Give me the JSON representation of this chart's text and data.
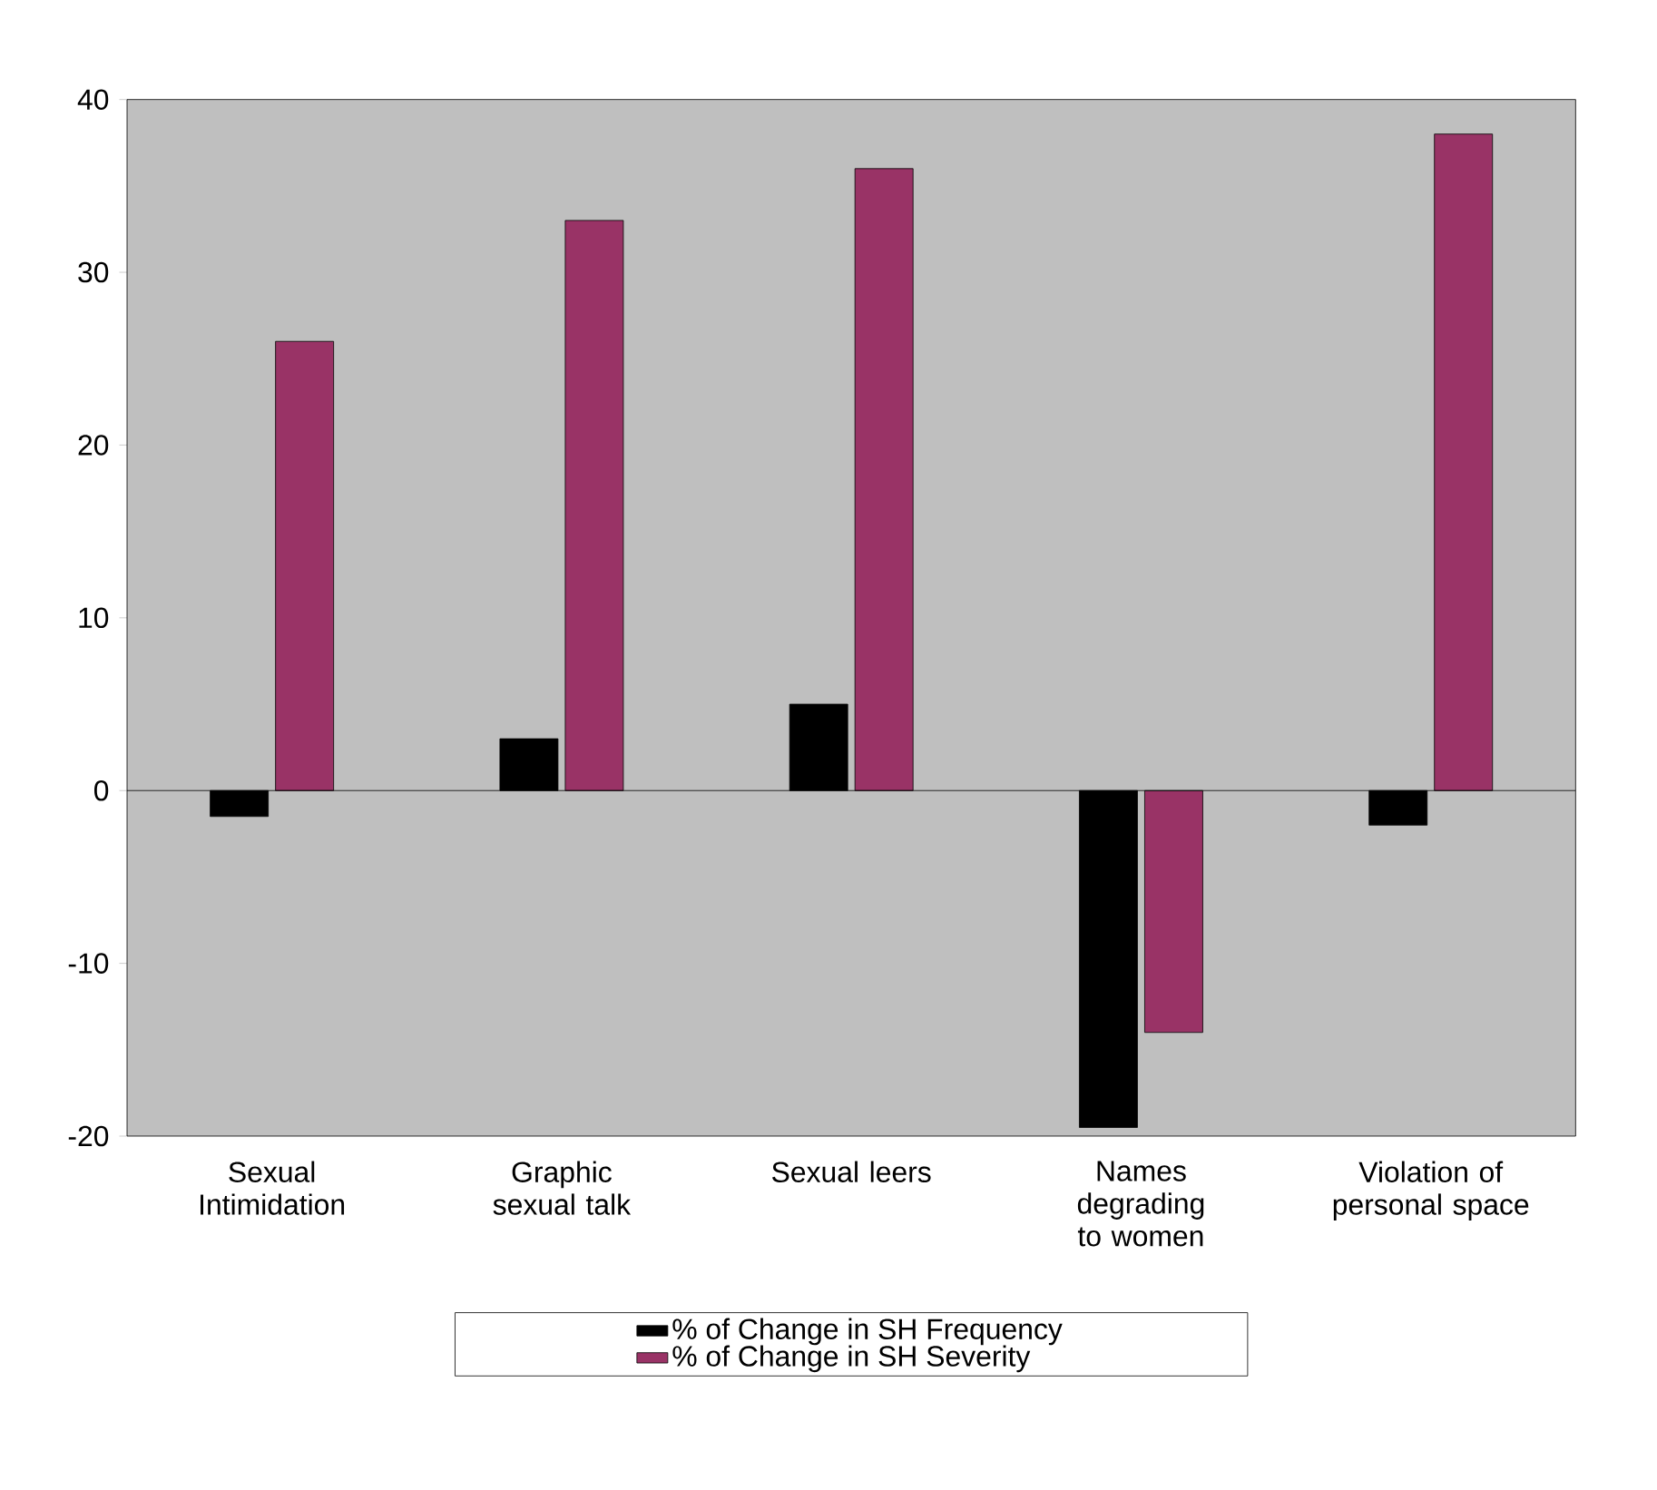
{
  "chart_data": {
    "type": "bar",
    "categories": [
      "Sexual Intimidation",
      "Graphic sexual talk",
      "Sexual leers",
      "Names degrading to women",
      "Violation of personal space"
    ],
    "series": [
      {
        "name": "% of Change in SH Frequency",
        "color": "#000000",
        "values": [
          -1.5,
          3,
          5,
          -19.5,
          -2
        ]
      },
      {
        "name": "% of Change in SH Severity",
        "color": "#993366",
        "values": [
          26,
          33,
          36,
          -14,
          38
        ]
      }
    ],
    "ylim": [
      -20,
      40
    ],
    "yticks": [
      -20,
      -10,
      0,
      10,
      20,
      30,
      40
    ],
    "ref_lines": [
      {
        "axis": "y",
        "value": 0,
        "color": "#000000"
      }
    ],
    "legend": "bottom"
  }
}
